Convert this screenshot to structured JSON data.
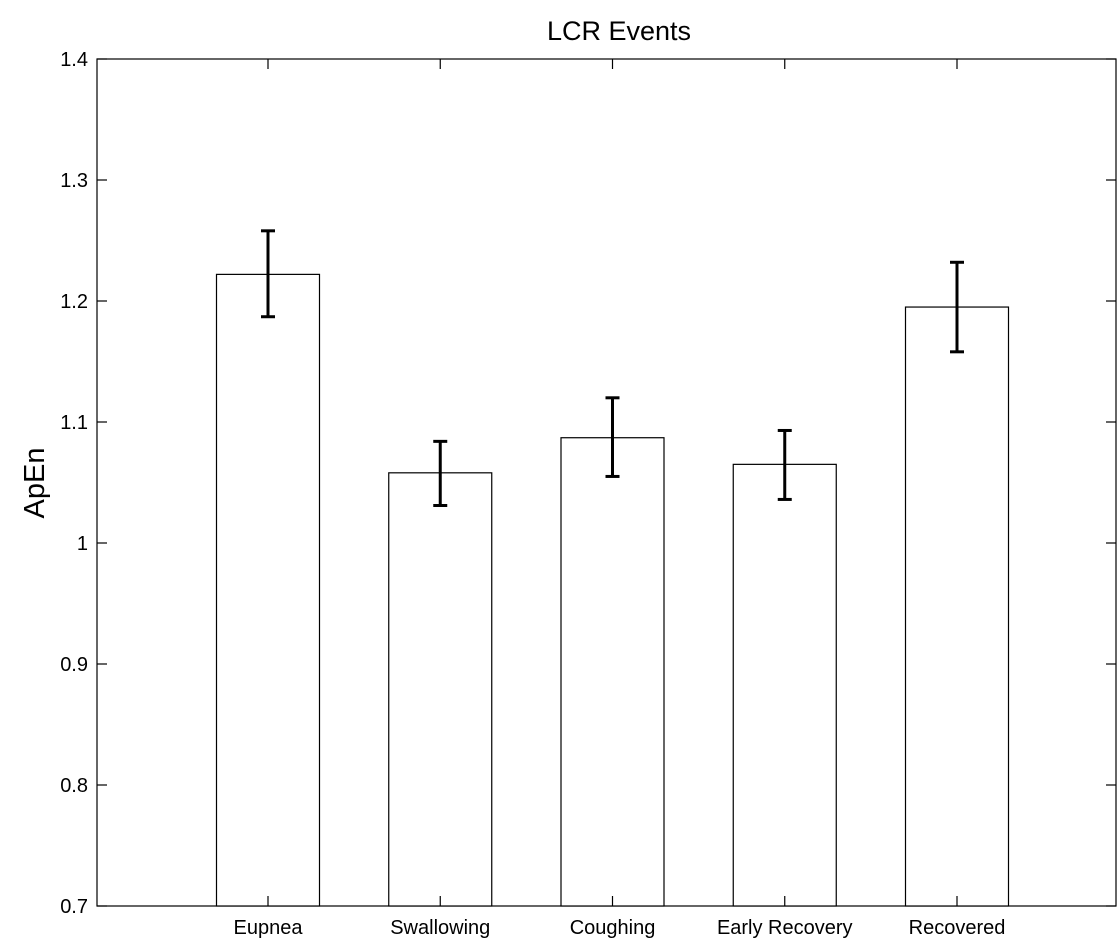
{
  "chart_data": {
    "type": "bar",
    "title": "LCR Events",
    "xlabel": "",
    "ylabel": "ApEn",
    "categories": [
      "Eupnea",
      "Swallowing",
      "Coughing",
      "Early Recovery",
      "Recovered"
    ],
    "values": [
      1.222,
      1.058,
      1.087,
      1.065,
      1.195
    ],
    "error_low": [
      1.187,
      1.031,
      1.055,
      1.036,
      1.158
    ],
    "error_high": [
      1.258,
      1.084,
      1.12,
      1.093,
      1.232
    ],
    "ylim": [
      0.7,
      1.4
    ],
    "yticks": [
      "0.7",
      "0.8",
      "0.9",
      "1",
      "1.1",
      "1.2",
      "1.3",
      "1.4"
    ],
    "grid": false,
    "legend": "none",
    "bar_fill": "#ffffff",
    "bar_stroke": "#000000",
    "error_bar_color": "#000000"
  }
}
